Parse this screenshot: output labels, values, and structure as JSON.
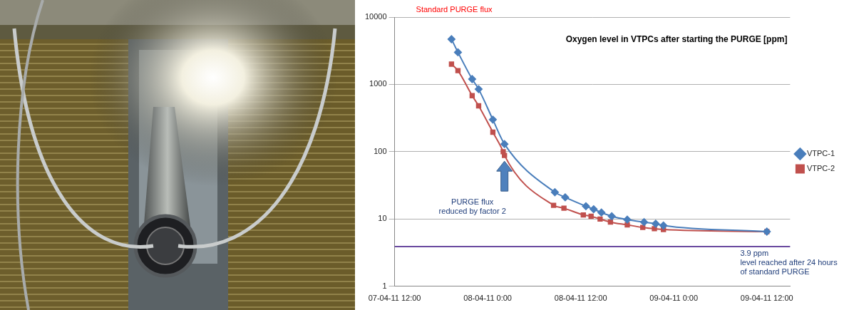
{
  "chart_data": {
    "type": "line",
    "title": "Oxygen level in VTPCs after starting the PURGE [ppm]",
    "log": "y",
    "grid": "y",
    "legend": "right",
    "xlim": [
      "2011-04-07T12:00",
      "2011-04-09T15:00"
    ],
    "xticks": [
      {
        "value": "2011-04-07T12:00",
        "label": "07-04-11 12:00"
      },
      {
        "value": "2011-04-08T00:00",
        "label": "08-04-11 0:00"
      },
      {
        "value": "2011-04-08T12:00",
        "label": "08-04-11 12:00"
      },
      {
        "value": "2011-04-09T00:00",
        "label": "09-04-11 0:00"
      },
      {
        "value": "2011-04-09T12:00",
        "label": "09-04-11 12:00"
      }
    ],
    "ylim": [
      1,
      10000
    ],
    "yticks": [
      1,
      10,
      100,
      1000,
      10000
    ],
    "series": [
      {
        "name": "VTPC-1",
        "color": "#4a7ebb",
        "marker": "diamond",
        "x": [
          "2011-04-07T19:20",
          "2011-04-07T20:10",
          "2011-04-07T22:00",
          "2011-04-07T22:50",
          "2011-04-08T00:40",
          "2011-04-08T02:10",
          "2011-04-08T08:40",
          "2011-04-08T10:00",
          "2011-04-08T12:40",
          "2011-04-08T13:40",
          "2011-04-08T14:40",
          "2011-04-08T16:00",
          "2011-04-08T18:00",
          "2011-04-08T20:10",
          "2011-04-08T21:40",
          "2011-04-08T22:40",
          "2011-04-09T12:00"
        ],
        "values": [
          4700,
          3000,
          1200,
          850,
          300,
          130,
          25,
          21,
          15.5,
          14,
          12.5,
          11,
          9.8,
          9,
          8.5,
          8,
          6.5
        ]
      },
      {
        "name": "VTPC-2",
        "color": "#c0504d",
        "marker": "square",
        "x": [
          "2011-04-07T19:20",
          "2011-04-07T20:10",
          "2011-04-07T22:00",
          "2011-04-07T22:50",
          "2011-04-08T00:40",
          "2011-04-08T02:00",
          "2011-04-08T02:10",
          "2011-04-08T08:30",
          "2011-04-08T09:50",
          "2011-04-08T12:20",
          "2011-04-08T13:20",
          "2011-04-08T14:30",
          "2011-04-08T15:50",
          "2011-04-08T18:00",
          "2011-04-08T20:00",
          "2011-04-08T21:30",
          "2011-04-08T22:40",
          "2011-04-09T12:00"
        ],
        "values": [
          2000,
          1600,
          680,
          480,
          195,
          100,
          88,
          16,
          14.5,
          11.5,
          11,
          10,
          9,
          8.2,
          7.5,
          7.2,
          7,
          6.5
        ]
      }
    ],
    "annotations": [
      {
        "text": [
          "Standard PURGE flux"
        ],
        "color": "#ff0000"
      },
      {
        "text": [
          "PURGE flux",
          "reduced by factor 2"
        ],
        "color": "#1f3d7a",
        "x": "2011-04-08T02:10"
      }
    ],
    "reference_line": {
      "value": 3.9,
      "color": "#6a4aa0",
      "text": [
        "3.9 ppm",
        "level reached after 24 hours",
        "of standard PURGE"
      ]
    }
  }
}
